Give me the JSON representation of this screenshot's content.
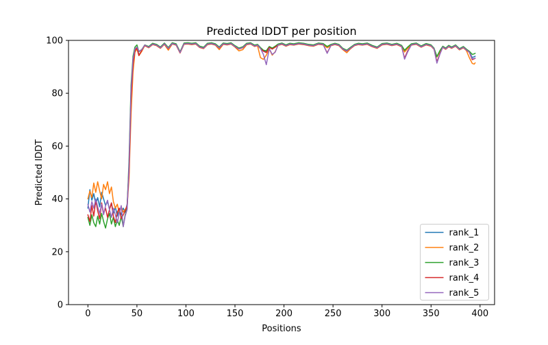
{
  "chart_data": {
    "type": "line",
    "title": "Predicted lDDT per position",
    "xlabel": "Positions",
    "ylabel": "Predicted lDDT",
    "xlim": [
      -19.8,
      414.8
    ],
    "ylim": [
      0,
      100
    ],
    "xticks": [
      0,
      50,
      100,
      150,
      200,
      250,
      300,
      350,
      400
    ],
    "yticks": [
      0,
      20,
      40,
      60,
      80,
      100
    ],
    "grid": false,
    "legend_position": "lower right",
    "legend_border_color": "#cccccc",
    "axis_color": "#000000",
    "x": [
      0,
      2,
      4,
      6,
      8,
      10,
      12,
      14,
      16,
      18,
      20,
      22,
      24,
      26,
      28,
      30,
      32,
      34,
      36,
      38,
      40,
      42,
      44,
      46,
      48,
      50,
      52,
      55,
      58,
      62,
      66,
      70,
      74,
      78,
      82,
      86,
      90,
      94,
      98,
      102,
      106,
      110,
      114,
      118,
      122,
      126,
      130,
      134,
      138,
      142,
      146,
      150,
      154,
      158,
      162,
      166,
      170,
      173,
      176,
      179,
      182,
      185,
      188,
      191,
      194,
      198,
      202,
      206,
      210,
      215,
      220,
      225,
      230,
      235,
      240,
      244,
      248,
      252,
      256,
      260,
      264,
      268,
      272,
      276,
      280,
      285,
      290,
      295,
      300,
      305,
      310,
      315,
      320,
      323,
      326,
      330,
      335,
      340,
      345,
      350,
      353,
      356,
      359,
      362,
      365,
      368,
      371,
      375,
      379,
      383,
      386,
      389,
      392,
      394,
      395
    ],
    "series": [
      {
        "name": "rank_1",
        "color": "#1f77b4",
        "y": [
          36.5,
          43.5,
          39.5,
          42.0,
          38.0,
          40.5,
          37.0,
          42.5,
          40.0,
          37.5,
          39.0,
          36.0,
          38.5,
          34.5,
          37.0,
          33.5,
          36.0,
          34.0,
          36.5,
          35.0,
          38.0,
          52.0,
          80.0,
          92.0,
          96.5,
          97.0,
          94.5,
          96.1,
          98.1,
          97.5,
          98.7,
          98.3,
          97.3,
          98.8,
          97.1,
          98.9,
          98.5,
          95.5,
          98.8,
          98.9,
          98.7,
          98.9,
          97.6,
          97.2,
          98.7,
          98.9,
          98.5,
          97.3,
          98.8,
          98.6,
          98.9,
          97.8,
          96.9,
          97.4,
          98.7,
          98.9,
          98.0,
          98.3,
          97.1,
          96.1,
          95.6,
          97.5,
          96.9,
          97.6,
          98.4,
          98.8,
          98.1,
          98.7,
          98.5,
          98.9,
          98.7,
          98.3,
          98.1,
          98.8,
          98.6,
          97.5,
          98.3,
          98.7,
          98.3,
          96.8,
          96.1,
          97.2,
          98.3,
          98.7,
          98.5,
          98.8,
          97.9,
          97.3,
          98.6,
          98.8,
          98.3,
          98.7,
          97.9,
          95.9,
          97.2,
          98.5,
          98.8,
          97.7,
          98.6,
          98.1,
          96.9,
          93.9,
          95.9,
          97.6,
          96.9,
          97.9,
          97.3,
          98.1,
          96.7,
          97.5,
          96.5,
          95.7,
          93.5,
          93.8,
          94.0
        ]
      },
      {
        "name": "rank_2",
        "color": "#ff7f0e",
        "y": [
          40.0,
          43.0,
          40.5,
          46.0,
          42.5,
          46.5,
          43.0,
          40.0,
          45.5,
          43.5,
          46.5,
          42.0,
          44.5,
          39.0,
          36.5,
          38.0,
          34.5,
          37.0,
          35.0,
          36.0,
          37.0,
          48.0,
          72.0,
          88.0,
          95.5,
          96.8,
          94.2,
          95.9,
          98.0,
          97.2,
          98.4,
          98.0,
          97.0,
          98.5,
          96.3,
          98.6,
          98.2,
          95.2,
          98.5,
          98.6,
          98.4,
          98.6,
          97.3,
          96.9,
          98.4,
          98.6,
          98.2,
          96.5,
          98.5,
          98.3,
          98.6,
          97.5,
          96.0,
          96.5,
          98.4,
          98.6,
          97.7,
          98.0,
          93.5,
          92.8,
          94.4,
          96.7,
          94.4,
          95.7,
          98.1,
          98.5,
          97.8,
          98.4,
          98.2,
          98.6,
          98.4,
          98.0,
          97.8,
          98.5,
          98.3,
          97.2,
          98.0,
          98.4,
          98.0,
          96.5,
          95.3,
          96.9,
          98.0,
          98.4,
          98.2,
          98.5,
          97.6,
          97.0,
          98.3,
          98.5,
          98.0,
          98.4,
          97.6,
          95.6,
          96.9,
          98.2,
          98.5,
          97.4,
          98.3,
          97.8,
          96.6,
          93.7,
          95.6,
          97.3,
          96.6,
          97.6,
          97.0,
          97.8,
          96.4,
          97.2,
          96.2,
          93.5,
          91.3,
          91.0,
          91.5
        ]
      },
      {
        "name": "rank_3",
        "color": "#2ca02c",
        "y": [
          33.0,
          30.0,
          34.0,
          31.0,
          29.5,
          33.5,
          30.5,
          34.5,
          31.5,
          29.0,
          32.5,
          34.5,
          30.5,
          33.0,
          29.5,
          32.0,
          30.0,
          33.5,
          29.5,
          34.0,
          36.5,
          55.0,
          83.0,
          94.0,
          97.5,
          98.3,
          95.7,
          96.6,
          98.3,
          97.7,
          98.9,
          98.5,
          97.5,
          99.0,
          97.3,
          99.1,
          98.7,
          95.7,
          99.0,
          99.1,
          98.9,
          99.1,
          97.8,
          97.4,
          98.9,
          99.1,
          98.7,
          97.5,
          99.0,
          98.8,
          99.1,
          98.0,
          97.1,
          97.6,
          98.9,
          99.1,
          98.2,
          98.5,
          97.3,
          96.3,
          96.1,
          97.7,
          97.1,
          97.8,
          98.6,
          99.0,
          98.3,
          98.9,
          98.7,
          99.1,
          98.9,
          98.5,
          98.3,
          99.0,
          98.8,
          97.7,
          98.5,
          98.9,
          98.5,
          97.0,
          96.3,
          97.4,
          98.5,
          98.9,
          98.7,
          99.0,
          98.1,
          97.5,
          98.8,
          99.0,
          98.5,
          98.9,
          98.1,
          96.3,
          97.4,
          98.7,
          99.0,
          97.9,
          98.8,
          98.3,
          97.1,
          93.8,
          96.1,
          97.8,
          97.1,
          98.1,
          97.5,
          98.3,
          96.9,
          97.7,
          96.7,
          95.9,
          94.7,
          94.9,
          95.1
        ]
      },
      {
        "name": "rank_4",
        "color": "#d62728",
        "y": [
          34.0,
          31.5,
          37.5,
          33.5,
          39.5,
          35.5,
          32.5,
          38.5,
          34.5,
          36.5,
          33.0,
          36.0,
          38.5,
          33.5,
          31.0,
          35.0,
          36.5,
          32.5,
          34.0,
          35.5,
          37.5,
          50.0,
          78.0,
          91.0,
          96.0,
          97.2,
          94.3,
          96.3,
          98.1,
          97.3,
          98.5,
          98.1,
          97.1,
          98.6,
          96.9,
          98.7,
          98.3,
          95.3,
          98.6,
          98.7,
          98.5,
          98.7,
          97.4,
          97.0,
          98.5,
          98.7,
          98.3,
          97.1,
          98.6,
          98.4,
          98.7,
          97.6,
          96.7,
          97.2,
          98.5,
          98.7,
          97.8,
          98.1,
          96.9,
          95.9,
          95.4,
          97.3,
          96.7,
          97.4,
          98.2,
          98.6,
          97.9,
          98.5,
          98.3,
          98.7,
          98.5,
          98.1,
          97.9,
          98.6,
          98.4,
          95.3,
          98.1,
          98.5,
          98.1,
          96.6,
          95.9,
          97.0,
          98.1,
          98.5,
          98.3,
          98.6,
          97.7,
          97.1,
          98.4,
          98.6,
          98.1,
          98.5,
          97.7,
          93.3,
          95.9,
          98.3,
          98.6,
          97.5,
          98.4,
          97.9,
          96.7,
          91.9,
          94.9,
          97.4,
          96.7,
          97.7,
          97.1,
          97.9,
          96.5,
          97.3,
          96.3,
          95.5,
          92.7,
          93.0,
          93.2
        ]
      },
      {
        "name": "rank_5",
        "color": "#9467bd",
        "y": [
          38.0,
          35.0,
          39.0,
          36.5,
          40.0,
          37.0,
          34.5,
          38.0,
          34.0,
          37.5,
          39.5,
          36.0,
          33.0,
          36.5,
          34.0,
          31.0,
          34.5,
          37.5,
          29.5,
          33.5,
          36.0,
          53.0,
          81.0,
          93.0,
          96.8,
          97.5,
          95.9,
          96.5,
          98.2,
          97.4,
          98.6,
          98.2,
          97.2,
          98.7,
          97.0,
          98.8,
          98.4,
          95.4,
          98.7,
          98.8,
          98.6,
          98.8,
          97.5,
          97.1,
          98.6,
          98.8,
          98.4,
          97.2,
          98.7,
          98.5,
          98.8,
          97.7,
          96.8,
          97.3,
          98.6,
          98.8,
          97.9,
          98.2,
          97.0,
          94.7,
          90.8,
          96.9,
          94.7,
          95.5,
          98.3,
          98.7,
          98.0,
          98.6,
          98.4,
          98.8,
          98.6,
          98.2,
          98.0,
          98.7,
          98.5,
          95.1,
          98.2,
          98.6,
          98.2,
          96.7,
          96.0,
          97.1,
          98.2,
          98.6,
          98.4,
          98.7,
          97.8,
          97.2,
          98.5,
          98.7,
          98.2,
          98.6,
          97.8,
          92.9,
          95.5,
          98.4,
          98.7,
          97.6,
          98.5,
          98.0,
          96.8,
          91.4,
          94.7,
          97.5,
          96.8,
          97.8,
          97.2,
          98.0,
          96.6,
          97.4,
          96.4,
          95.6,
          93.0,
          93.1,
          93.3
        ]
      }
    ]
  }
}
